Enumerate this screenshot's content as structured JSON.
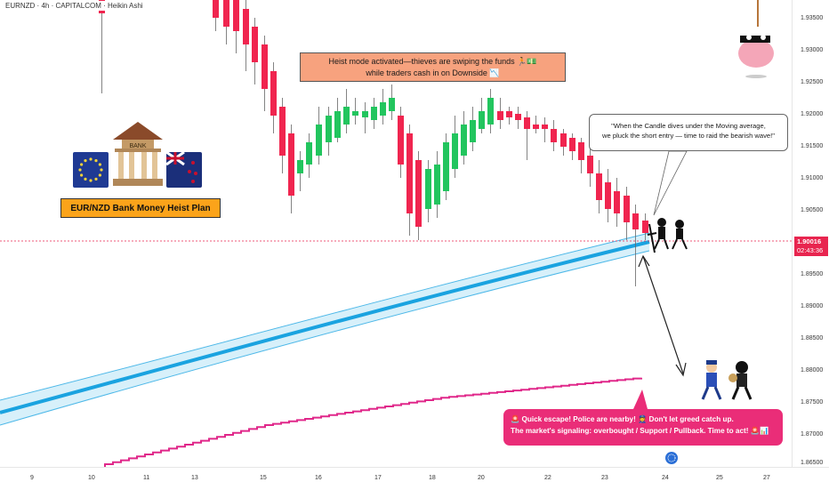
{
  "header": {
    "title": "EURNZD · 4h · CAPITALCOM · Heikin Ashi"
  },
  "price_axis": {
    "ticks": [
      "1.93500",
      "1.93000",
      "1.92500",
      "1.92000",
      "1.91500",
      "1.91000",
      "1.90500",
      "1.89500",
      "1.89000",
      "1.88500",
      "1.88000",
      "1.87500",
      "1.87000",
      "1.86500"
    ],
    "current_price": "1.90016",
    "countdown": "02:43:36"
  },
  "time_axis": {
    "ticks": [
      "9",
      "10",
      "11",
      "13",
      "15",
      "16",
      "17",
      "18",
      "20",
      "22",
      "23",
      "24",
      "25",
      "27"
    ]
  },
  "annotations": {
    "heist_line1": "Heist mode activated—thieves are swiping the funds 🏃💵",
    "heist_line2": "while traders cash in on Downside 📉",
    "speech_line1": "\"When the Candle dives under the Moving average,",
    "speech_line2": "we pluck the short entry — time to raid the bearish wave!\"",
    "escape_line1": "🚨 Quick escape! Police are nearby! 👮 Don't let greed catch up.",
    "escape_line2": "The market's signaling: overbought / Support / Pullback. Time to act! 🚨📊",
    "plan_label": "EUR/NZD Bank Money Heist Plan",
    "bank_sign": "BANK"
  },
  "colors": {
    "bull": "#22c55e",
    "bear": "#f0254f",
    "ma_line": "#2aa8e0",
    "ma_band": "#bfe6f7",
    "pink_line": "#e0288a",
    "price_line": "#e8254f"
  },
  "icons": [
    "bank-icon",
    "eu-flag-icon",
    "nz-flag-icon",
    "thief-icon",
    "police-icon",
    "pig-thief-icon",
    "calendar-event-icon"
  ]
}
